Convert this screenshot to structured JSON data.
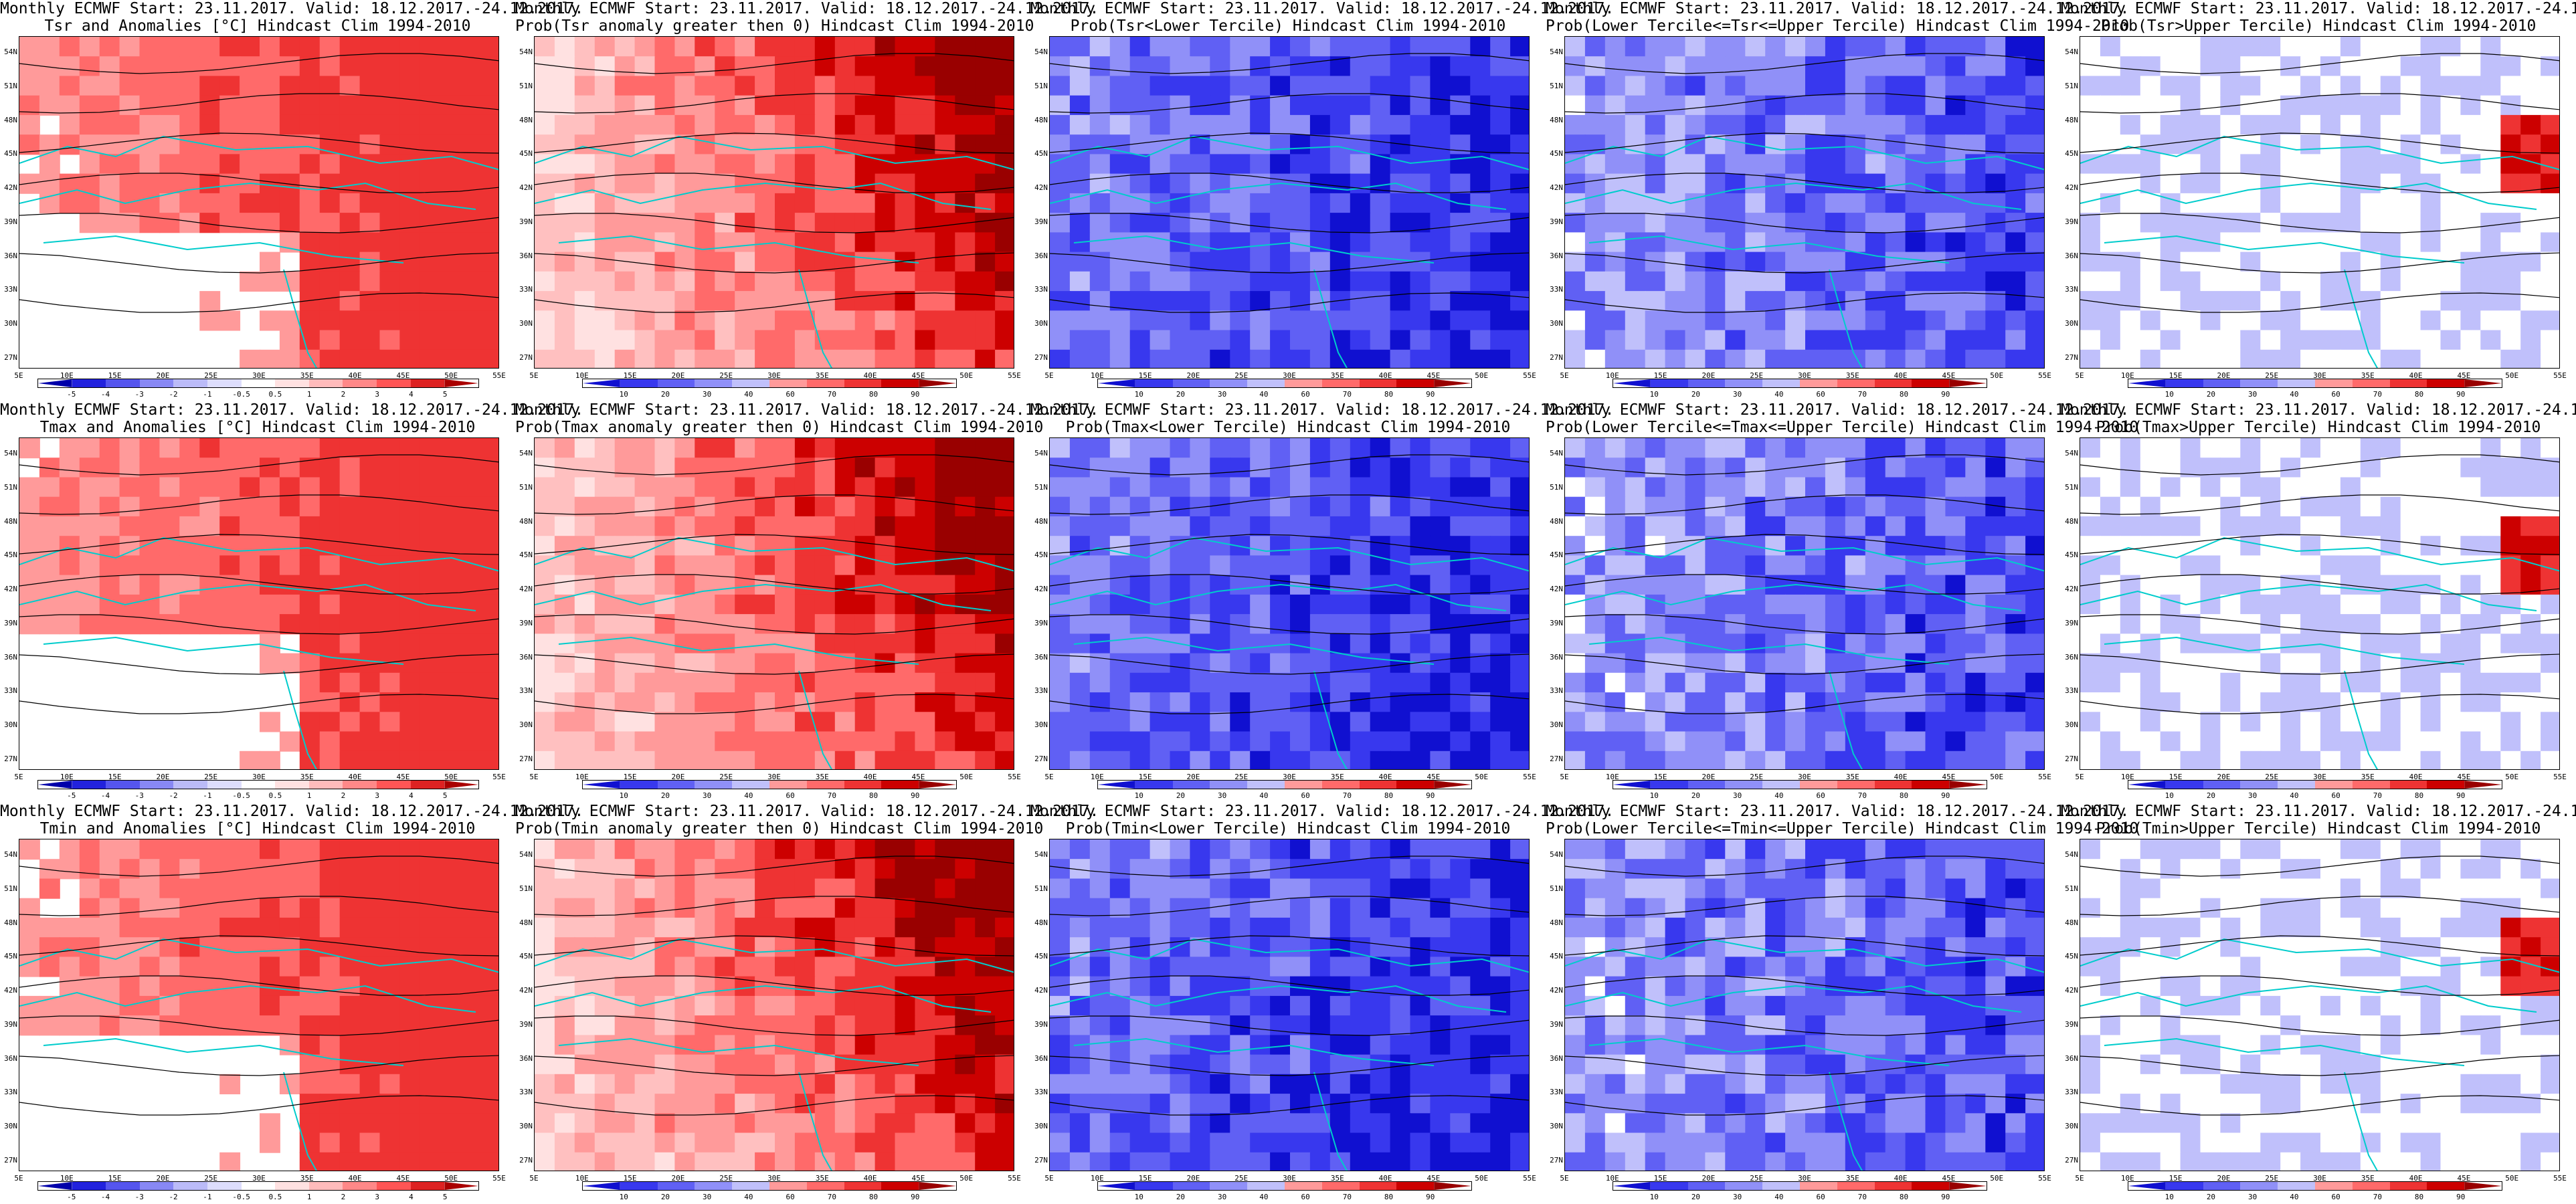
{
  "title_line1": "Monthly ECMWF Start: 23.11.2017. Valid: 18.12.2017.-24.12.2017.",
  "lat_labels": [
    "54N",
    "51N",
    "48N",
    "45N",
    "42N",
    "39N",
    "36N",
    "33N",
    "30N",
    "27N"
  ],
  "lon_labels": [
    "5E",
    "10E",
    "15E",
    "20E",
    "25E",
    "30E",
    "35E",
    "40E",
    "45E",
    "50E",
    "55E"
  ],
  "colors": {
    "coast": "#00cccc",
    "contour": "#000000",
    "red_scale": [
      "#ffe1e1",
      "#ffc0c0",
      "#ff9a9a",
      "#ff6a6a",
      "#ee3333",
      "#cc0000",
      "#990000"
    ],
    "blue_scale": [
      "#1010d0",
      "#3838ee",
      "#6060f4",
      "#9090f8",
      "#c0c0fb",
      "#ffffff"
    ],
    "anom_scale": [
      "#0000aa",
      "#2222dd",
      "#5555ee",
      "#8888f4",
      "#bbbbf8",
      "#ddddfc",
      "#ffffff",
      "#ffe1e1",
      "#ffbbbb",
      "#ff8888",
      "#ff5555",
      "#dd2222",
      "#aa0000"
    ]
  },
  "colorbars": {
    "anomaly": {
      "labels": [
        "-5",
        "-4",
        "-3",
        "-2",
        "-1",
        "-0.5",
        "0.5",
        "1",
        "2",
        "3",
        "4",
        "5"
      ]
    },
    "probability": {
      "labels": [
        "10",
        "20",
        "30",
        "40",
        "60",
        "70",
        "80",
        "90"
      ]
    }
  },
  "rows": [
    {
      "variable": "Tsr",
      "panels": [
        {
          "title2": "Tsr and Anomalies [°C] Hindcast Clim 1994-2010",
          "type": "anomaly",
          "pattern": "warm_east"
        },
        {
          "title2": "Prob(Tsr anomaly greater then 0) Hindcast Clim 1994-2010",
          "type": "probability",
          "pattern": "warm_east_strong"
        },
        {
          "title2": "Prob(Tsr<Lower Tercile) Hindcast Clim 1994-2010",
          "type": "probability",
          "pattern": "blue_strong"
        },
        {
          "title2": "Prob(Lower Tercile<=Tsr<=Upper Tercile) Hindcast Clim 1994-2010",
          "type": "probability",
          "pattern": "blue_medium"
        },
        {
          "title2": "Prob(Tsr>Upper Tercile) Hindcast Clim 1994-2010",
          "type": "probability",
          "pattern": "blue_light_red_spot"
        }
      ]
    },
    {
      "variable": "Tmax",
      "panels": [
        {
          "title2": "Tmax and Anomalies [°C] Hindcast Clim 1994-2010",
          "type": "anomaly",
          "pattern": "warm_east"
        },
        {
          "title2": "Prob(Tmax anomaly greater then 0) Hindcast Clim 1994-2010",
          "type": "probability",
          "pattern": "warm_east_strong"
        },
        {
          "title2": "Prob(Tmax<Lower Tercile) Hindcast Clim 1994-2010",
          "type": "probability",
          "pattern": "blue_strong"
        },
        {
          "title2": "Prob(Lower Tercile<=Tmax<=Upper Tercile) Hindcast Clim 1994-2010",
          "type": "probability",
          "pattern": "blue_medium"
        },
        {
          "title2": "Prob(Tmax>Upper Tercile) Hindcast Clim 1994-2010",
          "type": "probability",
          "pattern": "blue_light_red_spot"
        }
      ]
    },
    {
      "variable": "Tmin",
      "panels": [
        {
          "title2": "Tmin and Anomalies [°C] Hindcast Clim 1994-2010",
          "type": "anomaly",
          "pattern": "warm_east"
        },
        {
          "title2": "Prob(Tmin anomaly greater then 0) Hindcast Clim 1994-2010",
          "type": "probability",
          "pattern": "warm_east_strong"
        },
        {
          "title2": "Prob(Tmin<Lower Tercile) Hindcast Clim 1994-2010",
          "type": "probability",
          "pattern": "blue_strong"
        },
        {
          "title2": "Prob(Lower Tercile<=Tmin<=Upper Tercile) Hindcast Clim 1994-2010",
          "type": "probability",
          "pattern": "blue_medium"
        },
        {
          "title2": "Prob(Tmin>Upper Tercile) Hindcast Clim 1994-2010",
          "type": "probability",
          "pattern": "blue_light_red_spot"
        }
      ]
    }
  ]
}
